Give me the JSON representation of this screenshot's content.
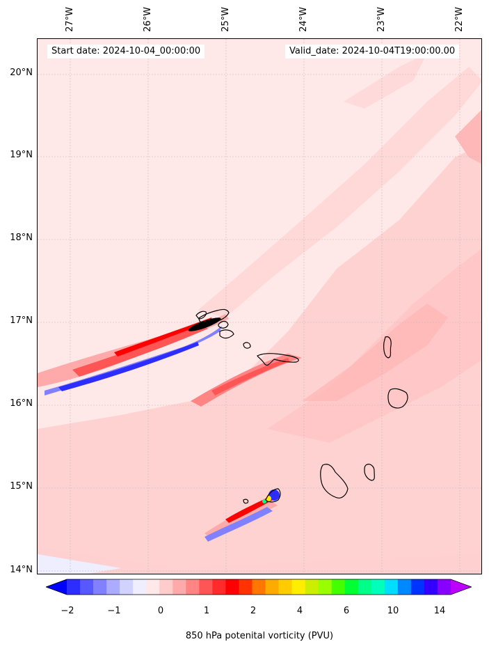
{
  "header": {
    "start_date": "Start date: 2024-10-04_00:00:00",
    "valid_date": "Valid_date: 2024-10-04T19:00:00.00"
  },
  "axes": {
    "longitude_labels": [
      "27°W",
      "26°W",
      "25°W",
      "24°W",
      "23°W",
      "22°W"
    ],
    "latitude_labels": [
      "20°N",
      "19°N",
      "18°N",
      "17°N",
      "16°N",
      "15°N",
      "14°N"
    ],
    "lon_range": [
      -27.4,
      -21.7
    ],
    "lat_range": [
      13.95,
      20.4
    ],
    "gridlines": true
  },
  "colorbar": {
    "label": "850 hPa potenital vorticity (PVU)",
    "tick_labels": [
      "−2",
      "−1",
      "0",
      "1",
      "2",
      "4",
      "6",
      "10",
      "14"
    ],
    "colors": [
      "#0000ff",
      "#2d2dff",
      "#5858ff",
      "#8181ff",
      "#ababff",
      "#d2d2ff",
      "#eeeeff",
      "#ffe8e8",
      "#ffcccc",
      "#ffaaaa",
      "#ff8585",
      "#ff5555",
      "#ff2b2b",
      "#ff0000",
      "#ff3300",
      "#ff7700",
      "#ffaa00",
      "#ffcc00",
      "#ffee00",
      "#ccee00",
      "#99ff00",
      "#44ff00",
      "#00ff33",
      "#00ff88",
      "#00ffbb",
      "#00ddff",
      "#0088ff",
      "#0033ff",
      "#3300ff",
      "#8800ff",
      "#bb00ff"
    ],
    "extend": "both"
  },
  "map": {
    "background_color": "#ffe8e8",
    "coastline_color": "#000000",
    "features": [
      "Cape Verde islands coastlines",
      "positive PV streamers (red)",
      "negative PV streamers (blue)"
    ]
  }
}
